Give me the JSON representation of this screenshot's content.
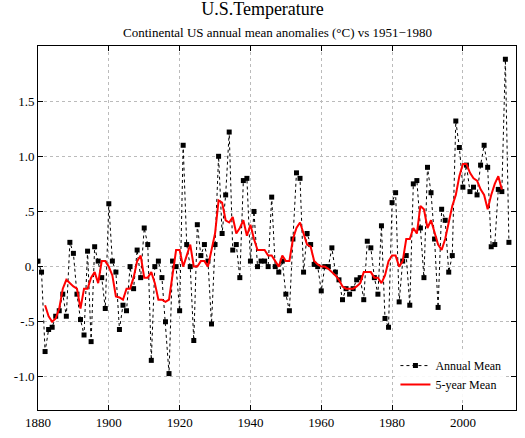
{
  "chart_data": {
    "type": "line",
    "title": "U.S.Temperature",
    "subtitle": "Continental US annual mean anomalies (°C) vs 1951−1980",
    "x": [
      1880,
      1881,
      1882,
      1883,
      1884,
      1885,
      1886,
      1887,
      1888,
      1889,
      1890,
      1891,
      1892,
      1893,
      1894,
      1895,
      1896,
      1897,
      1898,
      1899,
      1900,
      1901,
      1902,
      1903,
      1904,
      1905,
      1906,
      1907,
      1908,
      1909,
      1910,
      1911,
      1912,
      1913,
      1914,
      1915,
      1916,
      1917,
      1918,
      1919,
      1920,
      1921,
      1922,
      1923,
      1924,
      1925,
      1926,
      1927,
      1928,
      1929,
      1930,
      1931,
      1932,
      1933,
      1934,
      1935,
      1936,
      1937,
      1938,
      1939,
      1940,
      1941,
      1942,
      1943,
      1944,
      1945,
      1946,
      1947,
      1948,
      1949,
      1950,
      1951,
      1952,
      1953,
      1954,
      1955,
      1956,
      1957,
      1958,
      1959,
      1960,
      1961,
      1962,
      1963,
      1964,
      1965,
      1966,
      1967,
      1968,
      1969,
      1970,
      1971,
      1972,
      1973,
      1974,
      1975,
      1976,
      1977,
      1978,
      1979,
      1980,
      1981,
      1982,
      1983,
      1984,
      1985,
      1986,
      1987,
      1988,
      1989,
      1990,
      1991,
      1992,
      1993,
      1994,
      1995,
      1996,
      1997,
      1998,
      1999,
      2000,
      2001,
      2002,
      2003,
      2004,
      2005,
      2006,
      2007,
      2008,
      2009,
      2010,
      2011,
      2012,
      2013
    ],
    "series": [
      {
        "name": "Annual Mean",
        "color": "#000000",
        "marker": "square",
        "line_style": "dotted",
        "values": [
          0.05,
          -0.05,
          -0.77,
          -0.57,
          -0.55,
          -0.45,
          -0.4,
          -0.25,
          -0.45,
          0.22,
          0.12,
          -0.25,
          -0.48,
          -0.62,
          0.14,
          -0.68,
          0.18,
          0.05,
          -0.1,
          -0.38,
          0.57,
          0.05,
          -0.05,
          -0.57,
          -0.35,
          -0.4,
          0.0,
          -0.2,
          0.15,
          -0.1,
          0.35,
          0.2,
          -0.85,
          0.0,
          0.05,
          -0.1,
          -0.5,
          -0.97,
          0.05,
          0.0,
          -0.4,
          1.1,
          0.2,
          0.0,
          -0.67,
          0.38,
          0.1,
          0.2,
          0.05,
          -0.52,
          0.2,
          1.0,
          0.3,
          0.65,
          1.22,
          0.15,
          0.2,
          -0.1,
          0.78,
          0.8,
          0.05,
          0.5,
          0.0,
          0.05,
          0.05,
          0.0,
          0.63,
          0.0,
          -0.05,
          0.05,
          -0.25,
          -0.4,
          0.25,
          0.85,
          0.8,
          -0.05,
          0.3,
          0.2,
          0.02,
          0.0,
          -0.22,
          0.0,
          0.0,
          0.17,
          -0.05,
          -0.12,
          -0.3,
          -0.2,
          -0.25,
          -0.2,
          -0.12,
          -0.1,
          -0.3,
          0.23,
          0.17,
          -0.1,
          -0.25,
          0.37,
          -0.47,
          -0.55,
          0.58,
          0.67,
          -0.32,
          0.05,
          0.1,
          -0.35,
          0.75,
          0.78,
          0.35,
          -0.1,
          0.9,
          0.67,
          0.25,
          -0.37,
          0.52,
          0.42,
          -0.05,
          0.1,
          1.32,
          1.08,
          0.72,
          0.92,
          0.68,
          0.72,
          0.65,
          0.92,
          1.1,
          0.9,
          0.18,
          0.2,
          0.7,
          0.68,
          1.88,
          0.22
        ]
      },
      {
        "name": "5-year Mean",
        "color": "#ff0000",
        "line_style": "solid",
        "values": [
          null,
          null,
          -0.35,
          -0.45,
          -0.5,
          -0.47,
          -0.38,
          -0.2,
          -0.12,
          -0.15,
          -0.18,
          -0.2,
          -0.38,
          -0.2,
          -0.2,
          -0.1,
          -0.05,
          -0.15,
          0.05,
          0.05,
          0.0,
          -0.08,
          -0.27,
          -0.28,
          -0.3,
          -0.2,
          -0.2,
          -0.1,
          0.05,
          0.1,
          -0.1,
          -0.1,
          -0.05,
          -0.15,
          -0.3,
          -0.3,
          -0.32,
          -0.3,
          -0.05,
          0.15,
          0.15,
          0.0,
          0.1,
          0.2,
          0.0,
          0.0,
          0.05,
          0.05,
          0.0,
          0.15,
          0.3,
          0.6,
          0.58,
          0.42,
          0.4,
          0.45,
          0.3,
          0.35,
          0.42,
          0.28,
          0.38,
          0.25,
          0.15,
          0.15,
          0.15,
          0.1,
          0.1,
          0.05,
          0.0,
          0.1,
          0.05,
          0.05,
          0.25,
          0.35,
          0.4,
          0.3,
          0.2,
          0.18,
          0.05,
          0.02,
          0.0,
          0.0,
          -0.02,
          -0.05,
          -0.08,
          -0.12,
          -0.18,
          -0.2,
          -0.2,
          -0.2,
          -0.18,
          -0.15,
          -0.05,
          -0.05,
          -0.05,
          -0.1,
          -0.1,
          -0.15,
          -0.08,
          0.05,
          0.1,
          0.1,
          0.0,
          0.05,
          0.25,
          0.25,
          0.35,
          0.3,
          0.55,
          0.52,
          0.35,
          0.42,
          0.3,
          0.2,
          0.15,
          0.25,
          0.4,
          0.55,
          0.65,
          0.82,
          0.93,
          0.93,
          0.85,
          0.8,
          0.78,
          0.7,
          0.65,
          0.52,
          0.65,
          0.75,
          0.82,
          0.7,
          null,
          null
        ]
      }
    ],
    "xlim": [
      1880,
      2015
    ],
    "xticks": [
      1880,
      1900,
      1920,
      1940,
      1960,
      1980,
      2000
    ],
    "ylim": [
      -1.3,
      2.0
    ],
    "yticks": [
      {
        "value": -1.0,
        "label": "-1.0"
      },
      {
        "value": -0.5,
        "label": "-.5"
      },
      {
        "value": 0,
        "label": "0."
      },
      {
        "value": 0.5,
        "label": ".5"
      },
      {
        "value": 1.0,
        "label": "1.0"
      },
      1.5
    ],
    "grid": true,
    "legend": "lower right"
  }
}
